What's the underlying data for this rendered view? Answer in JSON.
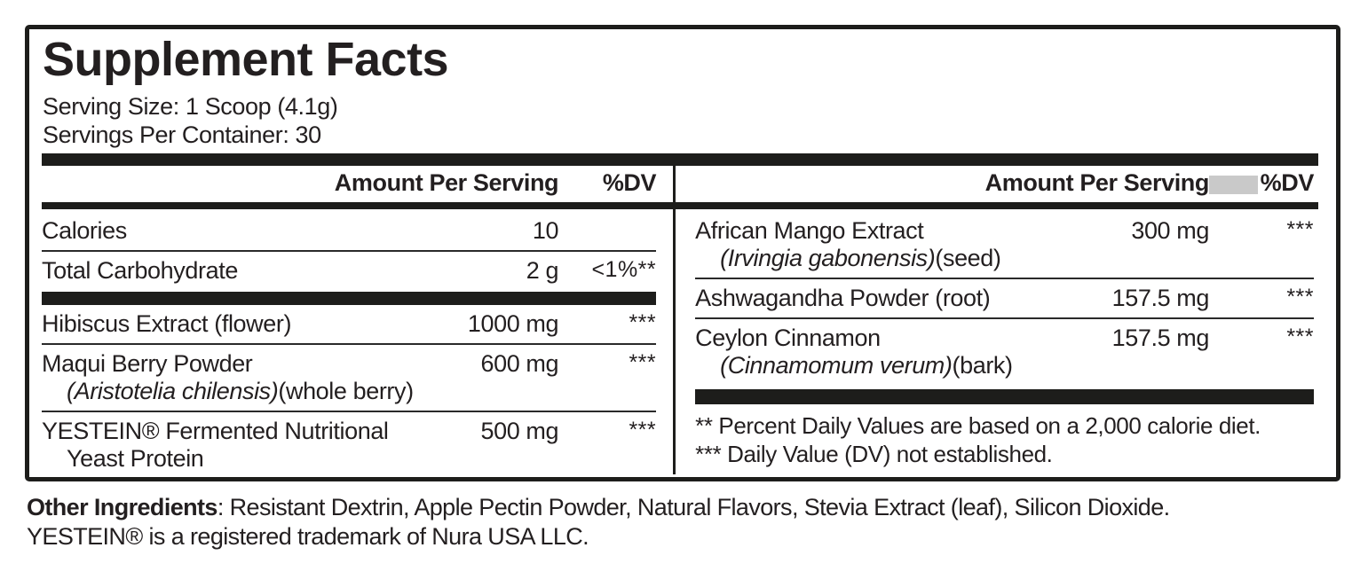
{
  "label": {
    "title": "Supplement Facts",
    "serving_size": "Serving Size: 1 Scoop (4.1g)",
    "servings_per_container": "Servings Per Container: 30",
    "columns": {
      "left": {
        "header": {
          "amount": "Amount Per Serving",
          "dv": "%DV"
        },
        "rows": [
          {
            "name": "Calories",
            "amount": "10",
            "dv": ""
          },
          {
            "name": "Total Carbohydrate",
            "amount": "2 g",
            "dv": "<1%**"
          },
          {
            "name": "Hibiscus Extract (flower)",
            "amount": "1000 mg",
            "dv": "***"
          },
          {
            "name": "Maqui Berry Powder",
            "sub_italic": "(Aristotelia chilensis)",
            "sub_regular": "(whole berry)",
            "amount": "600 mg",
            "dv": "***"
          },
          {
            "name": "YESTEIN® Fermented Nutritional",
            "sub_italic": "",
            "sub_regular": "Yeast Protein",
            "amount": "500 mg",
            "dv": "***"
          }
        ]
      },
      "right": {
        "header": {
          "amount": "Amount Per Serving",
          "dv": "%DV"
        },
        "rows": [
          {
            "name": "African Mango Extract",
            "sub_italic": "(Irvingia gabonensis)",
            "sub_regular": "(seed)",
            "amount": "300 mg",
            "dv": "***"
          },
          {
            "name": "Ashwagandha Powder (root)",
            "amount": "157.5 mg",
            "dv": "***"
          },
          {
            "name": "Ceylon Cinnamon",
            "sub_italic": "(Cinnamomum verum)",
            "sub_regular": "(bark)",
            "amount": "157.5 mg",
            "dv": "***"
          }
        ],
        "footnotes": [
          "** Percent Daily Values are based on a 2,000 calorie diet.",
          "*** Daily Value (DV) not established."
        ]
      }
    }
  },
  "footer": {
    "other_ingredients_label": "Other Ingredients",
    "other_ingredients_text": ": Resistant Dextrin, Apple Pectin Powder, Natural Flavors, Stevia Extract (leaf), Silicon Dioxide.",
    "trademark": "YESTEIN® is a registered trademark of Nura USA LLC."
  },
  "colors": {
    "text": "#231f20",
    "bar": "#1d1d1b",
    "redaction_box": "#c9c9c9",
    "background": "#ffffff"
  }
}
